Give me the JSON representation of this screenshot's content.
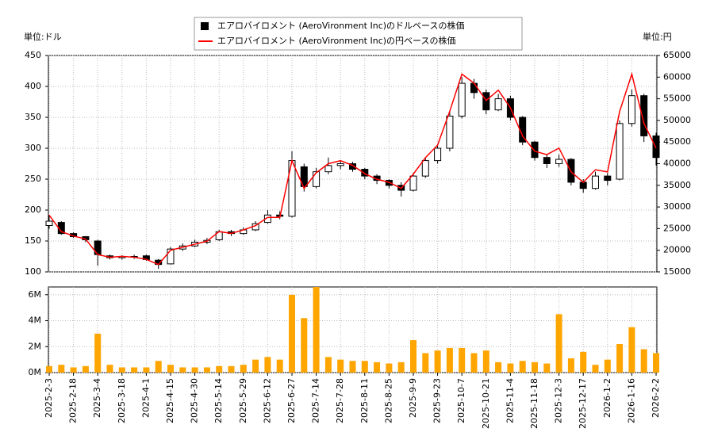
{
  "chart_data": [
    {
      "type": "candlestick",
      "legend": "top-center",
      "grid": true,
      "y_unit": "単位:ドル",
      "y2_unit": "単位:円",
      "ylim": [
        100,
        450
      ],
      "yticks": [
        100,
        150,
        200,
        250,
        300,
        350,
        400,
        450
      ],
      "y2lim": [
        15000,
        65000
      ],
      "y2ticks": [
        15000,
        20000,
        25000,
        30000,
        35000,
        40000,
        45000,
        50000,
        55000,
        60000,
        65000
      ],
      "series": [
        {
          "name": "エアロバイロメント (AeroVironment Inc)のドルベースの株価",
          "color": "#000000",
          "open": [
            175,
            180,
            162,
            157,
            150,
            126,
            123,
            125,
            126,
            119,
            113,
            137,
            142,
            148,
            152,
            165,
            162,
            168,
            180,
            192,
            190,
            270,
            238,
            262,
            272,
            275,
            266,
            255,
            248,
            240,
            232,
            255,
            280,
            300,
            352,
            405,
            390,
            362,
            380,
            350,
            310,
            285,
            275,
            282,
            245,
            235,
            255,
            250,
            340,
            385,
            320
          ],
          "high": [
            192,
            182,
            164,
            158,
            152,
            128,
            127,
            128,
            128,
            121,
            140,
            146,
            152,
            155,
            168,
            168,
            172,
            182,
            200,
            198,
            295,
            275,
            268,
            285,
            280,
            278,
            268,
            258,
            250,
            245,
            260,
            285,
            305,
            360,
            415,
            412,
            395,
            388,
            385,
            352,
            312,
            290,
            290,
            284,
            250,
            262,
            260,
            345,
            395,
            388,
            325
          ],
          "low": [
            170,
            160,
            155,
            148,
            110,
            120,
            120,
            121,
            118,
            105,
            112,
            134,
            140,
            145,
            150,
            158,
            160,
            166,
            178,
            185,
            188,
            230,
            235,
            258,
            266,
            262,
            250,
            242,
            235,
            222,
            230,
            252,
            275,
            295,
            348,
            380,
            355,
            360,
            345,
            305,
            280,
            268,
            270,
            240,
            228,
            233,
            240,
            248,
            335,
            310,
            272
          ],
          "close": [
            182,
            162,
            157,
            152,
            128,
            123,
            125,
            124,
            120,
            112,
            137,
            142,
            148,
            151,
            165,
            162,
            168,
            178,
            192,
            190,
            280,
            238,
            262,
            272,
            275,
            266,
            255,
            248,
            240,
            232,
            255,
            280,
            300,
            352,
            405,
            390,
            362,
            380,
            350,
            310,
            285,
            275,
            282,
            245,
            235,
            255,
            248,
            340,
            385,
            320,
            285
          ]
        },
        {
          "name": "エアロバイロメント (AeroVironment Inc)の円ベースの株価",
          "color": "#ff0000",
          "axis": "y2",
          "values": [
            28100,
            24300,
            23300,
            22600,
            19000,
            18400,
            18600,
            18400,
            17900,
            16700,
            20000,
            20700,
            21400,
            22100,
            24300,
            23900,
            24700,
            25700,
            27600,
            27600,
            40700,
            34300,
            37900,
            40000,
            40700,
            39600,
            37700,
            36400,
            35700,
            34300,
            37600,
            41400,
            44300,
            52100,
            60700,
            58600,
            54600,
            57000,
            52900,
            46400,
            42900,
            42100,
            43600,
            38100,
            35700,
            38600,
            38100,
            52100,
            60700,
            49300,
            43600
          ]
        }
      ]
    },
    {
      "type": "bar",
      "grid": true,
      "color": "#ffa500",
      "categories": [
        "2025-2-3",
        null,
        "2025-2-18",
        null,
        "2025-3-4",
        null,
        "2025-3-18",
        null,
        "2025-4-1",
        null,
        "2025-4-15",
        null,
        "2025-4-30",
        null,
        "2025-5-14",
        null,
        "2025-5-29",
        null,
        "2025-6-12",
        null,
        "2025-6-27",
        null,
        "2025-7-14",
        null,
        "2025-7-28",
        null,
        "2025-8-11",
        null,
        "2025-8-25",
        null,
        "2025-9-9",
        null,
        "2025-9-23",
        null,
        "2025-10-7",
        null,
        "2025-10-21",
        null,
        "2025-11-4",
        null,
        "2025-11-18",
        null,
        "2025-12-3",
        null,
        "2025-12-17",
        null,
        "2026-1-2",
        null,
        "2026-1-16",
        null,
        "2026-2-2"
      ],
      "values": [
        0.5,
        0.6,
        0.4,
        0.5,
        3.0,
        0.6,
        0.4,
        0.4,
        0.4,
        0.9,
        0.6,
        0.4,
        0.4,
        0.4,
        0.5,
        0.5,
        0.6,
        1.0,
        1.2,
        1.0,
        6.0,
        4.2,
        6.6,
        1.2,
        1.0,
        0.9,
        0.9,
        0.8,
        0.7,
        0.8,
        2.5,
        1.5,
        1.7,
        1.9,
        1.9,
        1.5,
        1.7,
        0.8,
        0.7,
        0.9,
        0.8,
        0.7,
        4.5,
        1.1,
        1.6,
        0.6,
        1.0,
        2.2,
        3.5,
        1.8,
        1.5
      ],
      "ylim": [
        0,
        6.6
      ],
      "yticks": [
        {
          "value": 0,
          "label": "0M"
        },
        {
          "value": 2,
          "label": "2M"
        },
        {
          "value": 4,
          "label": "4M"
        },
        {
          "value": 6,
          "label": "6M"
        }
      ]
    }
  ]
}
